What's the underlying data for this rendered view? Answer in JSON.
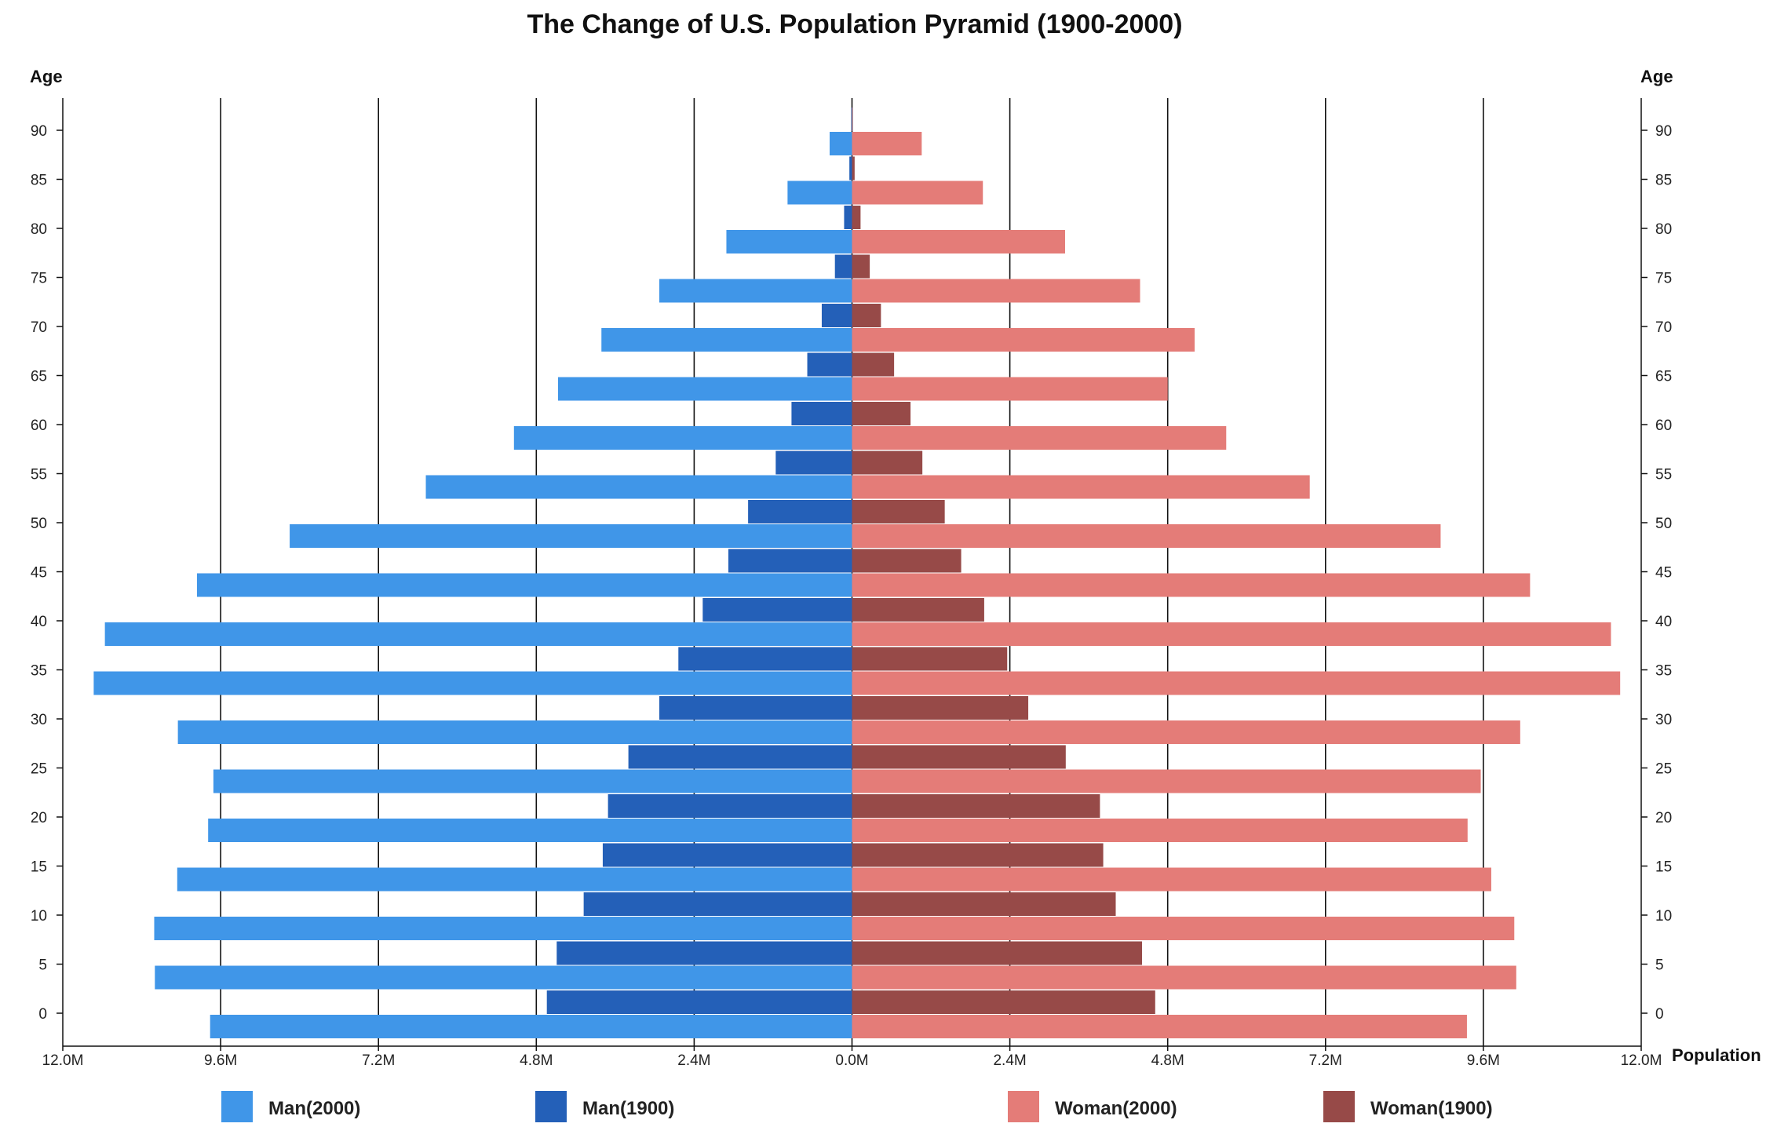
{
  "chart_data": {
    "type": "bar",
    "orientation": "horizontal-diverging",
    "title": "The Change of U.S. Population Pyramid (1900-2000)",
    "ylabel": "Age",
    "xlabel": "Population",
    "xlim": [
      -12000000,
      12000000
    ],
    "x_ticks": [
      "12.0M",
      "9.6M",
      "7.2M",
      "4.8M",
      "2.4M",
      "0.0M",
      "2.4M",
      "4.8M",
      "7.2M",
      "9.6M",
      "12.0M"
    ],
    "y_ticks": [
      "0",
      "5",
      "10",
      "15",
      "20",
      "25",
      "30",
      "35",
      "40",
      "45",
      "50",
      "55",
      "60",
      "65",
      "70",
      "75",
      "80",
      "85",
      "90"
    ],
    "categories": [
      0,
      5,
      10,
      15,
      20,
      25,
      30,
      35,
      40,
      45,
      50,
      55,
      60,
      65,
      70,
      75,
      80,
      85,
      90
    ],
    "grid": "vertical",
    "legend_position": "bottom",
    "series": [
      {
        "name": "Man(2000)",
        "side": "left",
        "color": "#4096e8",
        "values": [
          9760000,
          10600000,
          10610000,
          10260000,
          9790000,
          9710000,
          10250000,
          11530000,
          11360000,
          9960000,
          8550000,
          6480000,
          5140000,
          4470000,
          3810000,
          2930000,
          1910000,
          980000,
          340000
        ]
      },
      {
        "name": "Man(1900)",
        "side": "left",
        "color": "#2460b8",
        "values": [
          4640000,
          4490000,
          4080000,
          3790000,
          3710000,
          3400000,
          2930000,
          2640000,
          2270000,
          1880000,
          1580000,
          1160000,
          920000,
          680000,
          460000,
          260000,
          120000,
          40000,
          10000
        ]
      },
      {
        "name": "Woman(2000)",
        "side": "right",
        "color": "#e47c78",
        "values": [
          9350000,
          10100000,
          10070000,
          9720000,
          9360000,
          9560000,
          10160000,
          11680000,
          11540000,
          10310000,
          8950000,
          6960000,
          5690000,
          4800000,
          5210000,
          4380000,
          3240000,
          1990000,
          1060000
        ]
      },
      {
        "name": "Woman(1900)",
        "side": "right",
        "color": "#974a48",
        "values": [
          4610000,
          4410000,
          4010000,
          3820000,
          3770000,
          3250000,
          2680000,
          2360000,
          2010000,
          1660000,
          1410000,
          1070000,
          890000,
          640000,
          440000,
          270000,
          130000,
          40000,
          10000
        ]
      }
    ]
  }
}
